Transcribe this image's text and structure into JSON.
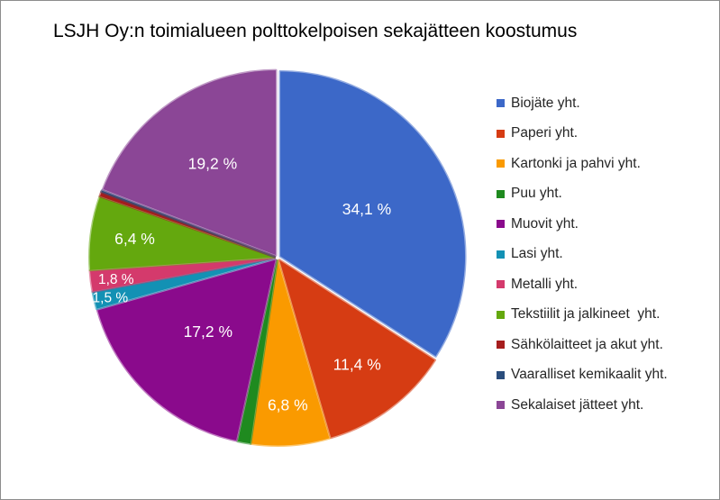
{
  "chart_data": {
    "type": "pie",
    "title": "LSJH Oy:n toimialueen polttokelpoisen sekajätteen koostumus",
    "legend_position": "right",
    "slices": [
      {
        "name": "Biojäte yht.",
        "value": 34.1,
        "label": "34,1 %",
        "color": "#3c68c8"
      },
      {
        "name": "Paperi yht.",
        "value": 11.4,
        "label": "11,4 %",
        "color": "#d63c13"
      },
      {
        "name": "Kartonki ja pahvi yht.",
        "value": 6.8,
        "label": "6,8 %",
        "color": "#fa9a00"
      },
      {
        "name": "Puu yht.",
        "value": 1.1,
        "label": "",
        "color": "#1f8a1f"
      },
      {
        "name": "Muovit yht.",
        "value": 17.2,
        "label": "17,2 %",
        "color": "#8a0a8c"
      },
      {
        "name": "Lasi yht.",
        "value": 1.5,
        "label": "1,5 %",
        "color": "#1391b4"
      },
      {
        "name": "Metalli yht.",
        "value": 1.8,
        "label": "1,8 %",
        "color": "#d43a6c"
      },
      {
        "name": "Tekstiilit ja jalkineet  yht.",
        "value": 6.4,
        "label": "6,4 %",
        "color": "#64a80e"
      },
      {
        "name": "Sähkölaitteet ja akut yht.",
        "value": 0.4,
        "label": "",
        "color": "#a61d1d"
      },
      {
        "name": "Vaaralliset kemikaalit yht.",
        "value": 0.1,
        "label": "",
        "color": "#2a4d7c"
      },
      {
        "name": "Sekalaiset jätteet yht.",
        "value": 19.2,
        "label": "19,2 %",
        "color": "#8b4696"
      }
    ]
  }
}
